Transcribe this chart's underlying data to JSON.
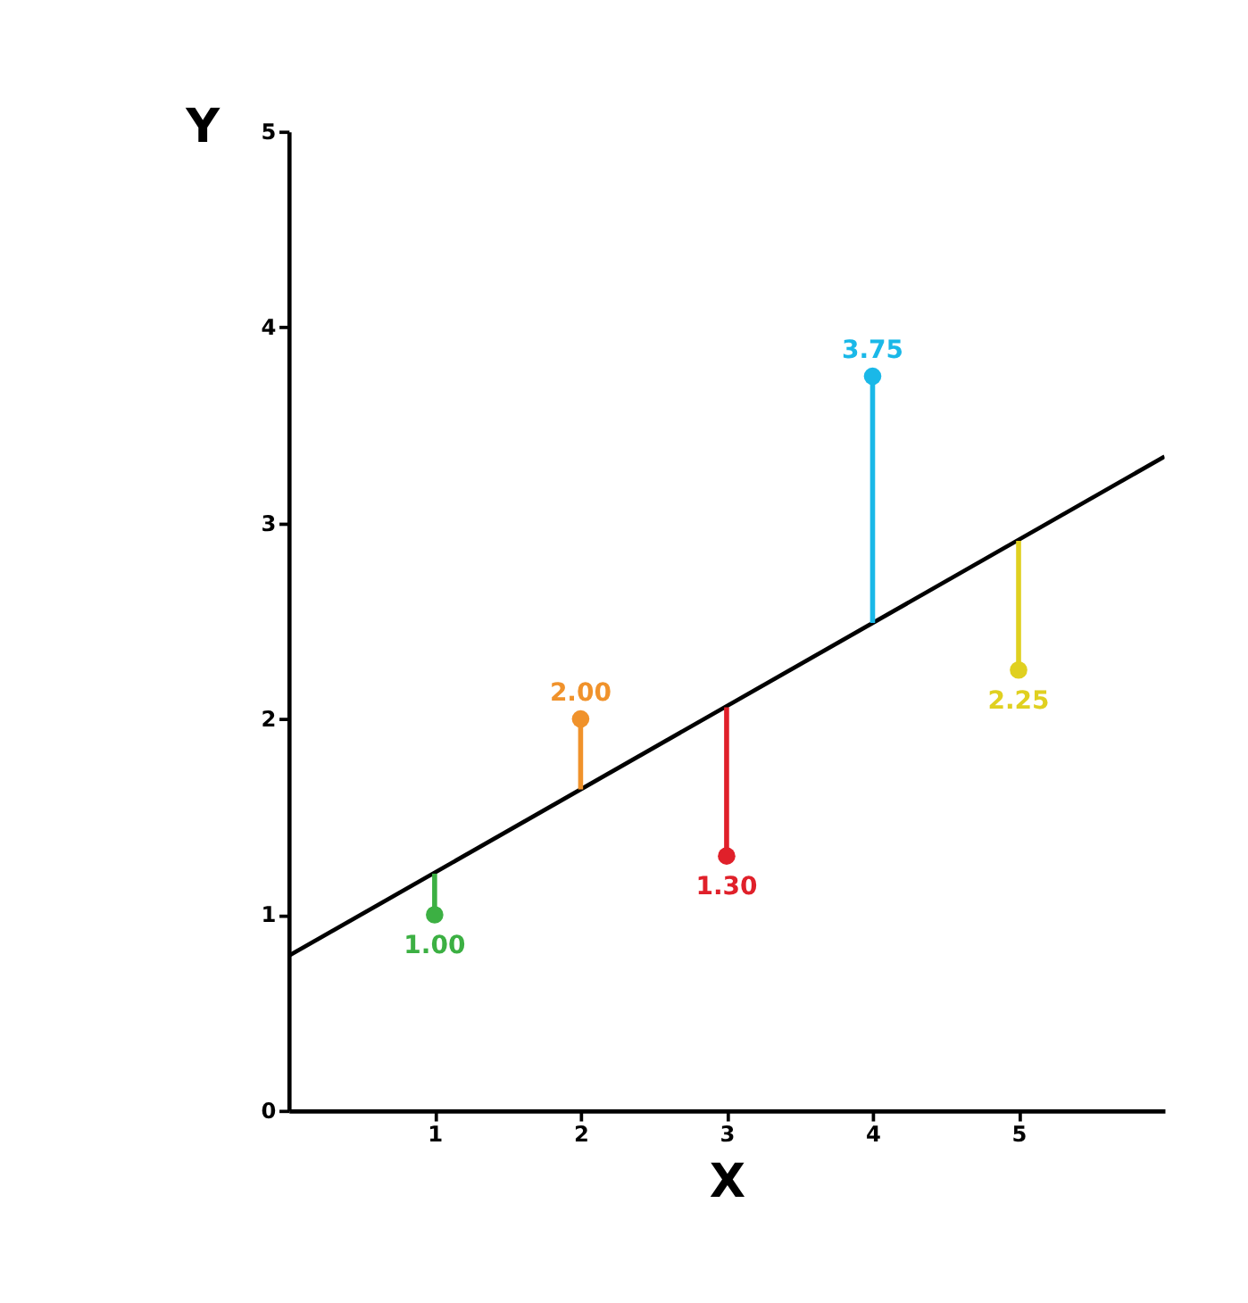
{
  "chart_data": {
    "type": "scatter",
    "xlabel": "X",
    "ylabel": "Y",
    "xlim": [
      0,
      6
    ],
    "ylim": [
      0,
      5
    ],
    "xticks": [
      1,
      2,
      3,
      4,
      5
    ],
    "yticks": [
      0,
      1,
      2,
      3,
      4,
      5
    ],
    "grid": false,
    "marker": "circle",
    "series": [
      {
        "type": "line",
        "color": "#000000",
        "x": [
          0,
          6
        ],
        "values": [
          0.79,
          3.34
        ],
        "marker": "none"
      },
      {
        "x": [
          1,
          2,
          3,
          4,
          5
        ],
        "values": [
          1.0,
          2.0,
          1.3,
          3.75,
          2.25
        ],
        "colors": [
          "#3cb043",
          "#f0922b",
          "#e0202a",
          "#1ab8e8",
          "#e0d020"
        ],
        "errors": [
          [
            1.0,
            1.21
          ],
          [
            1.64,
            2.0
          ],
          [
            1.3,
            2.06
          ],
          [
            2.49,
            3.75
          ],
          [
            2.25,
            2.91
          ]
        ],
        "value_labels": [
          "1.00",
          "2.00",
          "1.30",
          "3.75",
          "2.25"
        ]
      }
    ]
  }
}
